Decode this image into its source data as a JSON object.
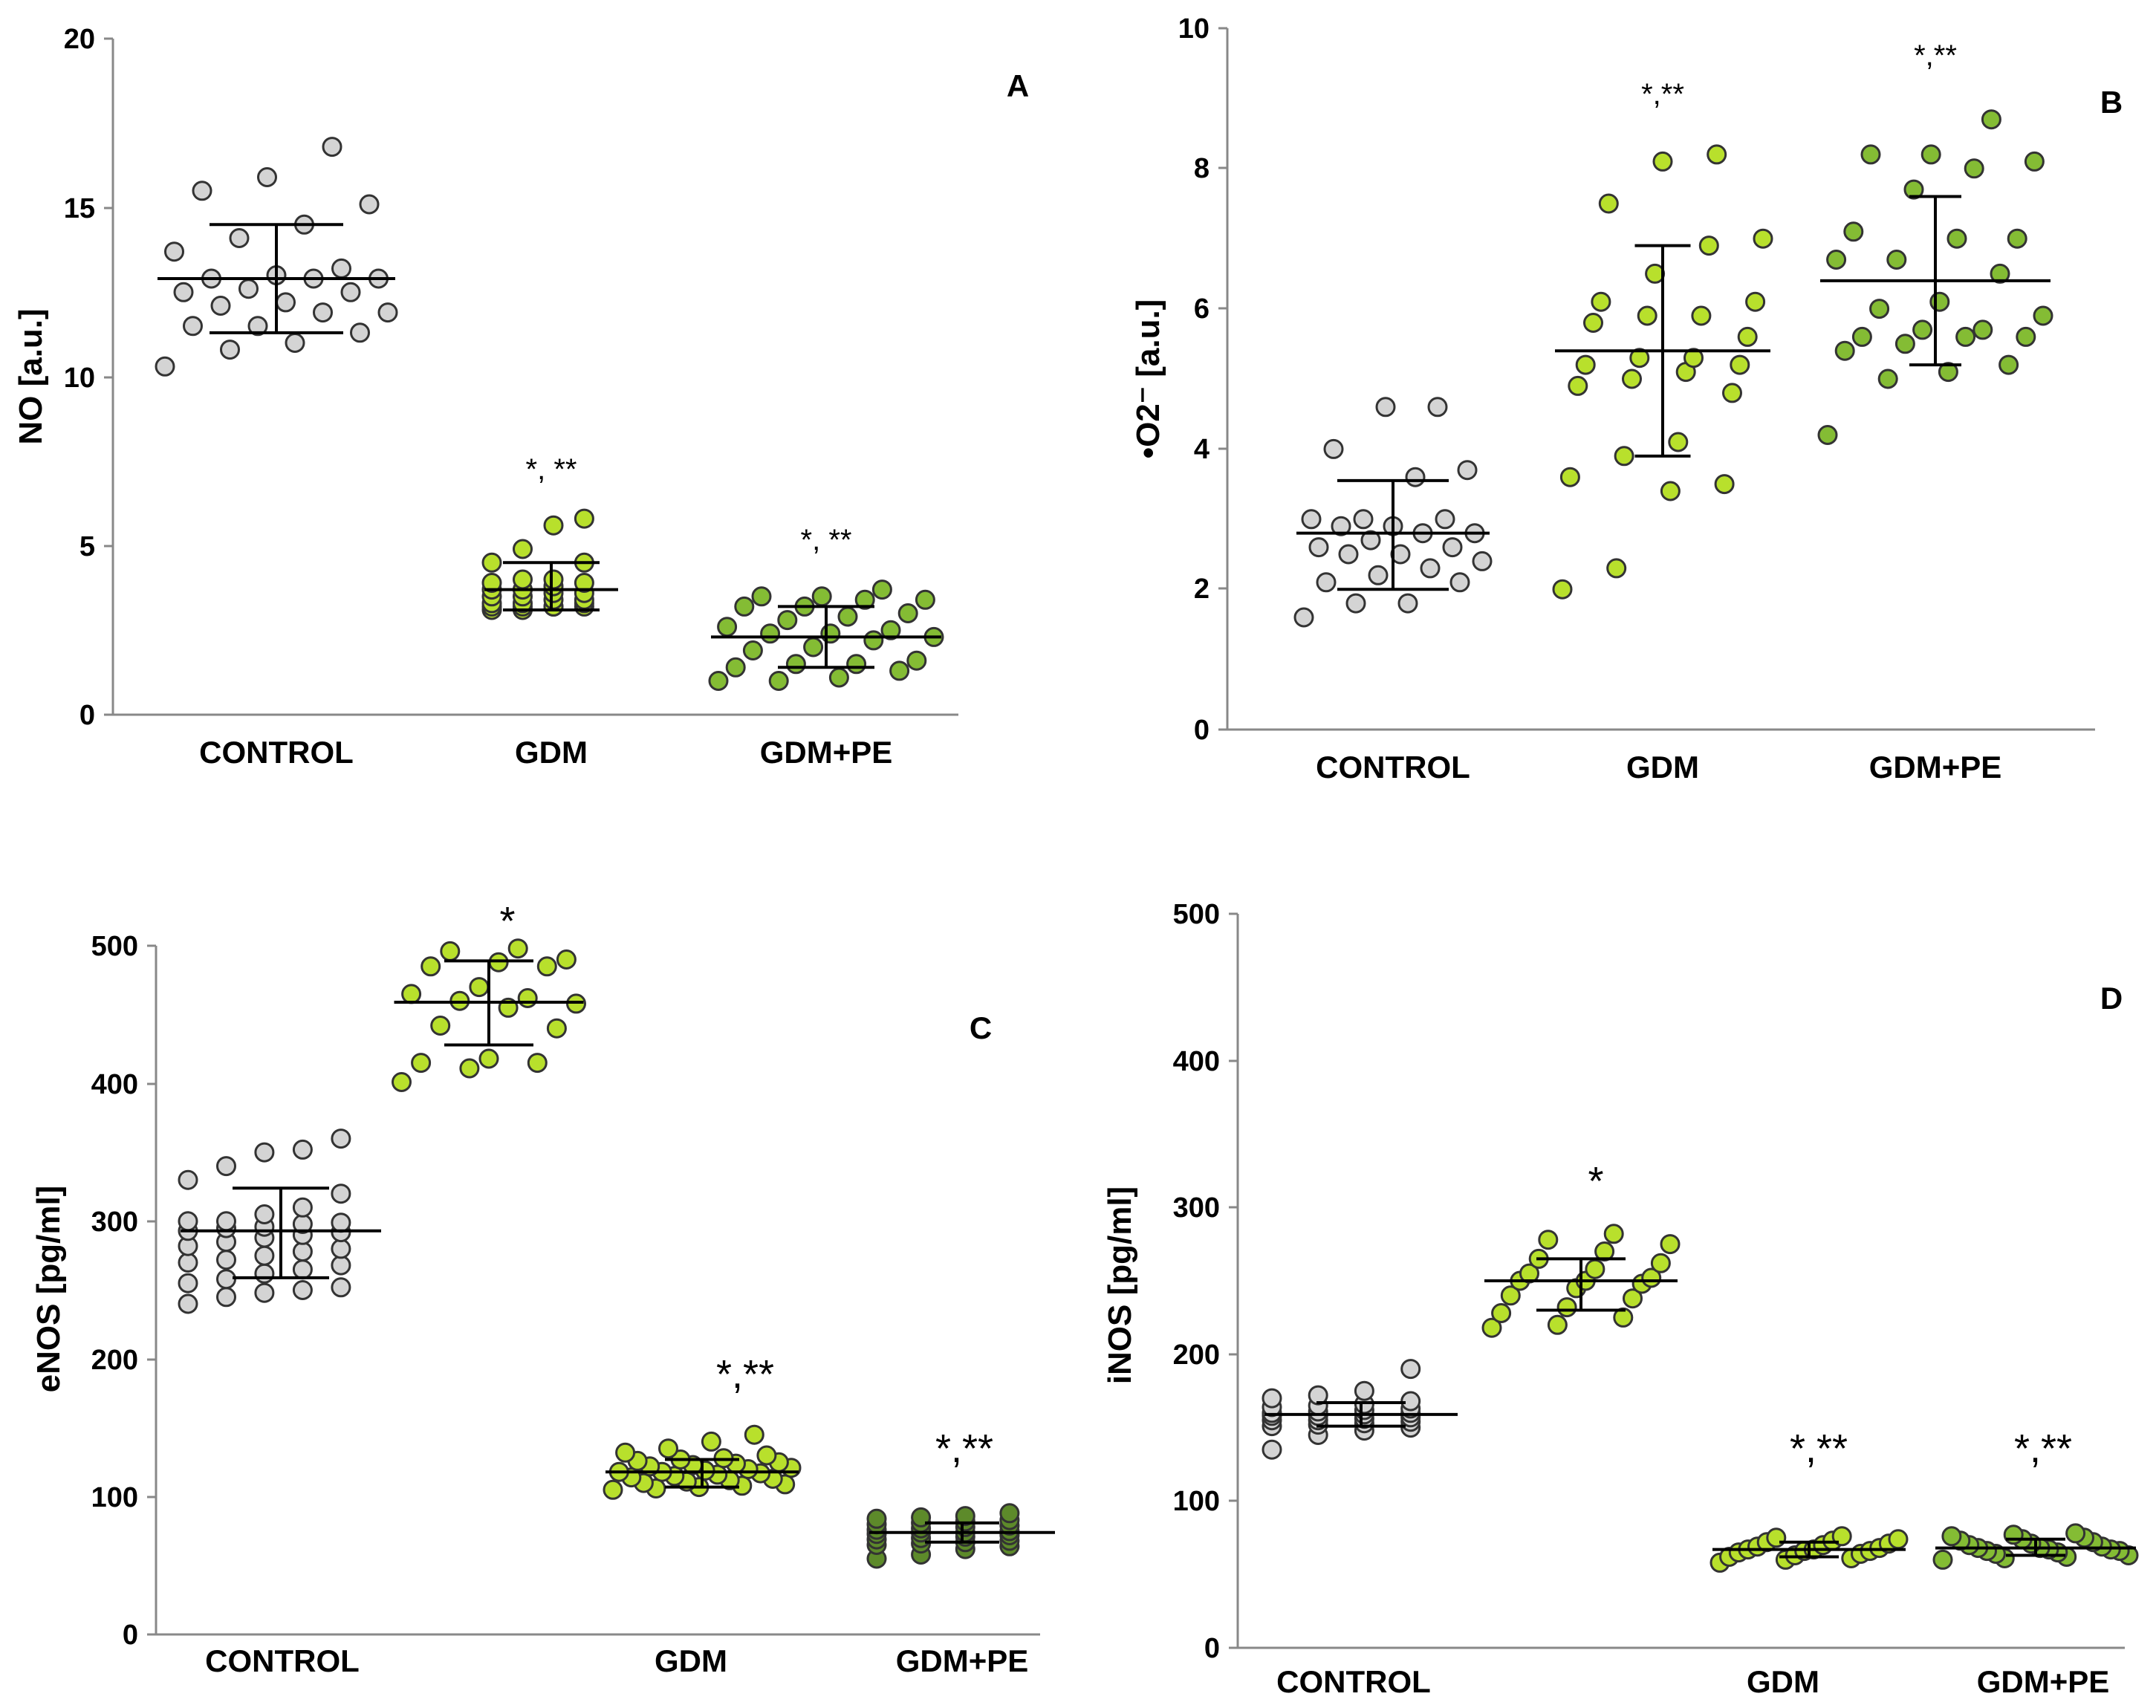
{
  "colors": {
    "control": "#d4d4d4",
    "gdm": "#b8e02c",
    "gdm_pe": "#84bc34",
    "gdm_pe_dark": "#5d8a2a"
  },
  "chart_data": [
    {
      "type": "scatter",
      "panel": "A",
      "ylabel": "NO [a.u.]",
      "ylim": [
        0,
        20
      ],
      "yticks": [
        "0",
        "5",
        "10",
        "15",
        "20"
      ],
      "categories": [
        "CONTROL",
        "GDM",
        "GDM+PE"
      ],
      "significance": [
        "",
        "*, **",
        "*, **"
      ],
      "series": [
        {
          "name": "CONTROL",
          "mean": 12.9,
          "sd_low": 11.3,
          "sd_high": 14.5,
          "values": [
            10.3,
            10.8,
            11.0,
            11.3,
            11.5,
            11.5,
            11.9,
            11.9,
            12.1,
            12.2,
            12.5,
            12.5,
            12.6,
            12.9,
            12.9,
            12.9,
            13.0,
            13.2,
            13.7,
            14.1,
            14.5,
            15.1,
            15.5,
            15.9,
            16.8
          ]
        },
        {
          "name": "GDM",
          "mean": 3.7,
          "sd_low": 3.1,
          "sd_high": 4.5,
          "values": [
            3.1,
            3.1,
            3.2,
            3.2,
            3.2,
            3.2,
            3.2,
            3.3,
            3.3,
            3.3,
            3.4,
            3.4,
            3.5,
            3.5,
            3.6,
            3.6,
            3.7,
            3.7,
            3.8,
            3.9,
            3.9,
            4.0,
            4.0,
            4.5,
            4.5,
            4.9,
            5.6,
            5.8
          ]
        },
        {
          "name": "GDM+PE",
          "mean": 2.3,
          "sd_low": 1.4,
          "sd_high": 3.2,
          "values": [
            1.0,
            1.0,
            1.1,
            1.3,
            1.4,
            1.5,
            1.5,
            1.6,
            1.9,
            2.0,
            2.2,
            2.3,
            2.4,
            2.4,
            2.5,
            2.6,
            2.8,
            2.9,
            3.0,
            3.2,
            3.2,
            3.4,
            3.4,
            3.5,
            3.5,
            3.7
          ]
        }
      ]
    },
    {
      "type": "scatter",
      "panel": "B",
      "ylabel": "•O2⁻ [a.u.]",
      "ylim": [
        0,
        10
      ],
      "yticks": [
        "0",
        "2",
        "4",
        "6",
        "8",
        "10"
      ],
      "categories": [
        "CONTROL",
        "GDM",
        "GDM+PE"
      ],
      "significance": [
        "",
        "*,**",
        "*,**"
      ],
      "series": [
        {
          "name": "CONTROL",
          "mean": 2.8,
          "sd_low": 2.0,
          "sd_high": 3.55,
          "values": [
            1.6,
            1.8,
            1.8,
            2.1,
            2.1,
            2.2,
            2.3,
            2.4,
            2.5,
            2.5,
            2.6,
            2.6,
            2.7,
            2.8,
            2.8,
            2.9,
            2.9,
            3.0,
            3.0,
            3.0,
            3.6,
            3.7,
            4.0,
            4.6,
            4.6
          ]
        },
        {
          "name": "GDM",
          "mean": 5.4,
          "sd_low": 3.9,
          "sd_high": 6.9,
          "values": [
            2.0,
            2.3,
            3.4,
            3.5,
            3.6,
            3.9,
            4.1,
            4.8,
            4.9,
            5.0,
            5.1,
            5.2,
            5.2,
            5.3,
            5.3,
            5.6,
            5.8,
            5.9,
            5.9,
            6.1,
            6.1,
            6.5,
            6.9,
            7.0,
            7.5,
            8.1,
            8.2
          ]
        },
        {
          "name": "GDM+PE",
          "mean": 6.4,
          "sd_low": 5.2,
          "sd_high": 7.6,
          "values": [
            4.2,
            5.0,
            5.1,
            5.2,
            5.4,
            5.5,
            5.6,
            5.6,
            5.6,
            5.7,
            5.7,
            5.9,
            6.0,
            6.1,
            6.5,
            6.7,
            6.7,
            7.0,
            7.0,
            7.1,
            7.7,
            8.0,
            8.1,
            8.2,
            8.2,
            8.7
          ]
        }
      ]
    },
    {
      "type": "scatter",
      "panel": "C",
      "ylabel": "eNOS [pg/ml]",
      "ylim": [
        0,
        500
      ],
      "yticks": [
        "0",
        "100",
        "200",
        "300",
        "400",
        "500"
      ],
      "categories": [
        "CONTROL",
        "",
        "GDM",
        "GDM+PE"
      ],
      "significance": [
        "",
        "*",
        "*,**",
        "*,**"
      ],
      "series": [
        {
          "name": "CONTROL",
          "mean": 293,
          "sd_low": 259,
          "sd_high": 324,
          "values": [
            240,
            245,
            248,
            250,
            252,
            255,
            258,
            262,
            265,
            268,
            270,
            272,
            275,
            278,
            280,
            282,
            285,
            288,
            290,
            292,
            293,
            295,
            296,
            298,
            299,
            300,
            300,
            305,
            310,
            320,
            330,
            340,
            350,
            352,
            360
          ]
        },
        {
          "name": "GDM",
          "mean": 459,
          "sd_low": 428,
          "sd_high": 489,
          "values": [
            401,
            411,
            415,
            415,
            418,
            440,
            442,
            455,
            458,
            460,
            462,
            465,
            470,
            485,
            485,
            488,
            490,
            496,
            498
          ]
        },
        {
          "name": "GDM",
          "mean": 118,
          "sd_low": 107,
          "sd_high": 127,
          "values": [
            105,
            106,
            107,
            108,
            109,
            110,
            111,
            112,
            113,
            114,
            115,
            116,
            117,
            118,
            118,
            119,
            120,
            121,
            122,
            123,
            124,
            125,
            126,
            127,
            128,
            130,
            132,
            135,
            140,
            145
          ]
        },
        {
          "name": "GDM+PE",
          "mean": 74,
          "sd_low": 67,
          "sd_high": 81,
          "values": [
            55,
            58,
            62,
            64,
            65,
            66,
            67,
            68,
            69,
            70,
            71,
            72,
            73,
            74,
            74,
            75,
            76,
            77,
            78,
            79,
            80,
            81,
            82,
            83,
            84,
            85,
            86,
            88
          ]
        }
      ]
    },
    {
      "type": "scatter",
      "panel": "D",
      "ylabel": "iNOS [pg/ml]",
      "ylim": [
        0,
        500
      ],
      "yticks": [
        "0",
        "100",
        "200",
        "300",
        "400",
        "500"
      ],
      "categories": [
        "CONTROL",
        "",
        "GDM",
        "GDM+PE"
      ],
      "significance": [
        "",
        "*",
        "*,**",
        "*,**"
      ],
      "series": [
        {
          "name": "CONTROL",
          "mean": 159,
          "sd_low": 151,
          "sd_high": 167,
          "values": [
            135,
            145,
            148,
            150,
            151,
            152,
            153,
            154,
            155,
            155,
            156,
            157,
            158,
            158,
            159,
            160,
            160,
            161,
            162,
            163,
            164,
            165,
            166,
            168,
            170,
            172,
            175,
            190
          ]
        },
        {
          "name": "GDM",
          "mean": 250,
          "sd_low": 230,
          "sd_high": 265,
          "values": [
            218,
            220,
            225,
            228,
            232,
            238,
            240,
            245,
            248,
            250,
            250,
            252,
            255,
            258,
            262,
            265,
            270,
            275,
            278,
            282
          ]
        },
        {
          "name": "GDM",
          "mean": 67,
          "sd_low": 62,
          "sd_high": 72,
          "values": [
            58,
            60,
            61,
            62,
            63,
            64,
            65,
            66,
            66,
            67,
            67,
            68,
            69,
            70,
            71,
            72,
            73,
            74,
            75,
            76
          ]
        },
        {
          "name": "GDM+PE",
          "mean": 68,
          "sd_low": 63,
          "sd_high": 74,
          "values": [
            60,
            61,
            62,
            63,
            64,
            65,
            66,
            66,
            67,
            67,
            68,
            68,
            69,
            70,
            71,
            72,
            73,
            74,
            75,
            76,
            77,
            78
          ]
        }
      ]
    }
  ]
}
